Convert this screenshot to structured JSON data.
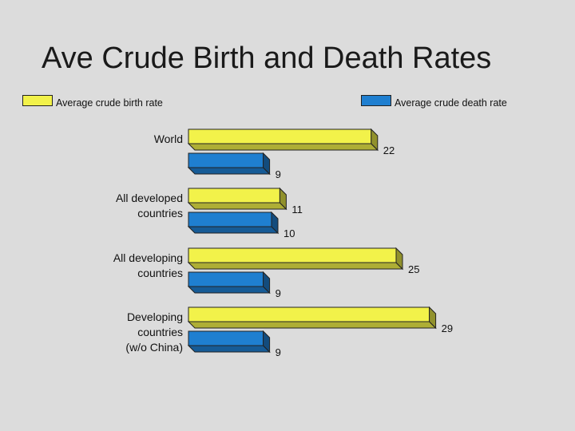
{
  "title": "Ave Crude Birth and Death Rates",
  "colors": {
    "birth": "#f2f24a",
    "death": "#1f7fd0",
    "background": "#dcdcdc"
  },
  "chart_data": {
    "type": "bar",
    "orientation": "horizontal",
    "style": "3d",
    "categories": [
      [
        "World"
      ],
      [
        "All developed",
        "countries"
      ],
      [
        "All developing",
        "countries"
      ],
      [
        "Developing",
        "countries",
        "(w/o China)"
      ]
    ],
    "series": [
      {
        "name": "Average crude birth rate",
        "values": [
          22,
          11,
          25,
          29
        ]
      },
      {
        "name": "Average crude death rate",
        "values": [
          9,
          10,
          9,
          9
        ]
      }
    ],
    "legend": "top",
    "grid": false
  }
}
